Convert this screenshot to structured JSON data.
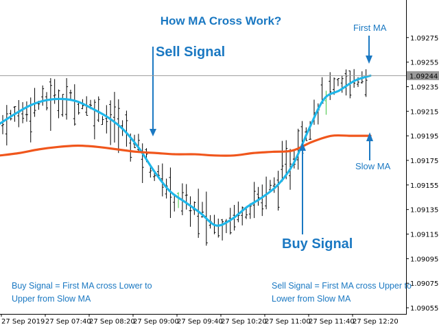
{
  "chart_data": {
    "type": "candlestick",
    "title": "How MA Cross Work?",
    "ylim": [
      1.0905,
      1.093
    ],
    "y_ticks": [
      "1.09275",
      "1.09255",
      "1.09235",
      "1.09215",
      "1.09195",
      "1.09175",
      "1.09155",
      "1.09135",
      "1.09115",
      "1.09095",
      "1.09075",
      "1.09055"
    ],
    "x_ticks": [
      "27 Sep 2019",
      "27 Sep 07:40",
      "27 Sep 08:20",
      "27 Sep 09:00",
      "27 Sep 09:40",
      "27 Sep 10:20",
      "27 Sep 11:00",
      "27 Sep 11:40",
      "27 Sep 12:20"
    ],
    "current_price": "1.09244",
    "series": [
      {
        "name": "First MA",
        "color": "#1fb7ea",
        "values": [
          1.09205,
          1.09213,
          1.0922,
          1.09224,
          1.09225,
          1.09223,
          1.09217,
          1.0921,
          1.092,
          1.09185,
          1.09166,
          1.0915,
          1.09141,
          1.09132,
          1.09122,
          1.09127,
          1.09137,
          1.09145,
          1.09155,
          1.09172,
          1.092,
          1.09225,
          1.09232,
          1.0924,
          1.09244
        ]
      },
      {
        "name": "Slow MA",
        "color": "#f0561c",
        "values": [
          1.09179,
          1.09181,
          1.09184,
          1.09186,
          1.09187,
          1.09186,
          1.09184,
          1.09182,
          1.09181,
          1.0918,
          1.0918,
          1.09179,
          1.09179,
          1.09181,
          1.09182,
          1.09183,
          1.0919,
          1.09195,
          1.09195,
          1.09195
        ]
      }
    ],
    "annotations": {
      "sell_signal": "Sell Signal",
      "buy_signal": "Buy Signal",
      "first_ma": "First MA",
      "slow_ma": "Slow MA",
      "buy_note_line1": "Buy Signal = First MA cross Lower to",
      "buy_note_line2": "Upper from Slow MA",
      "sell_note_line1": "Sell Signal = First MA cross Upper to",
      "sell_note_line2": "Lower from Slow MA"
    },
    "colors": {
      "annotation": "#1a78c2",
      "bar": "#000000",
      "bull_bar": "#3cc43c",
      "price_line": "#9a9a9a"
    }
  }
}
